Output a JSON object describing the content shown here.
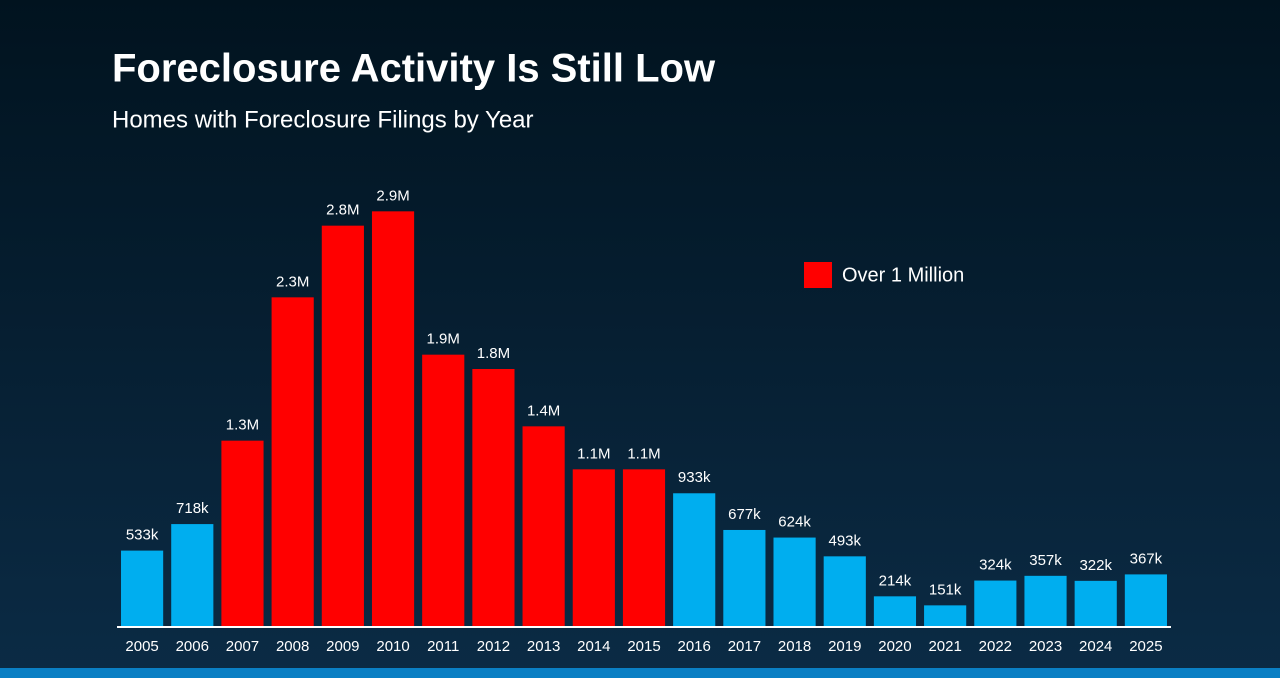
{
  "chart_data": {
    "type": "bar",
    "title": "Foreclosure Activity Is Still Low",
    "subtitle": "Homes with Foreclosure Filings by Year",
    "categories": [
      "2005",
      "2006",
      "2007",
      "2008",
      "2009",
      "2010",
      "2011",
      "2012",
      "2013",
      "2014",
      "2015",
      "2016",
      "2017",
      "2018",
      "2019",
      "2020",
      "2021",
      "2022",
      "2023",
      "2024",
      "2025"
    ],
    "values": [
      533000,
      718000,
      1300000,
      2300000,
      2800000,
      2900000,
      1900000,
      1800000,
      1400000,
      1100000,
      1100000,
      933000,
      677000,
      624000,
      493000,
      214000,
      151000,
      324000,
      357000,
      322000,
      367000
    ],
    "value_labels": [
      "533k",
      "718k",
      "1.3M",
      "2.3M",
      "2.8M",
      "2.9M",
      "1.9M",
      "1.8M",
      "1.4M",
      "1.1M",
      "1.1M",
      "933k",
      "677k",
      "624k",
      "493k",
      "214k",
      "151k",
      "324k",
      "357k",
      "322k",
      "367k"
    ],
    "colors": [
      "#00aeef",
      "#00aeef",
      "#ff0000",
      "#ff0000",
      "#ff0000",
      "#ff0000",
      "#ff0000",
      "#ff0000",
      "#ff0000",
      "#ff0000",
      "#ff0000",
      "#00aeef",
      "#00aeef",
      "#00aeef",
      "#00aeef",
      "#00aeef",
      "#00aeef",
      "#00aeef",
      "#00aeef",
      "#00aeef",
      "#00aeef"
    ],
    "legend": {
      "label": "Over 1 Million",
      "color": "#ff0000",
      "position": "upper right"
    },
    "ylim": [
      0,
      3000000
    ]
  }
}
